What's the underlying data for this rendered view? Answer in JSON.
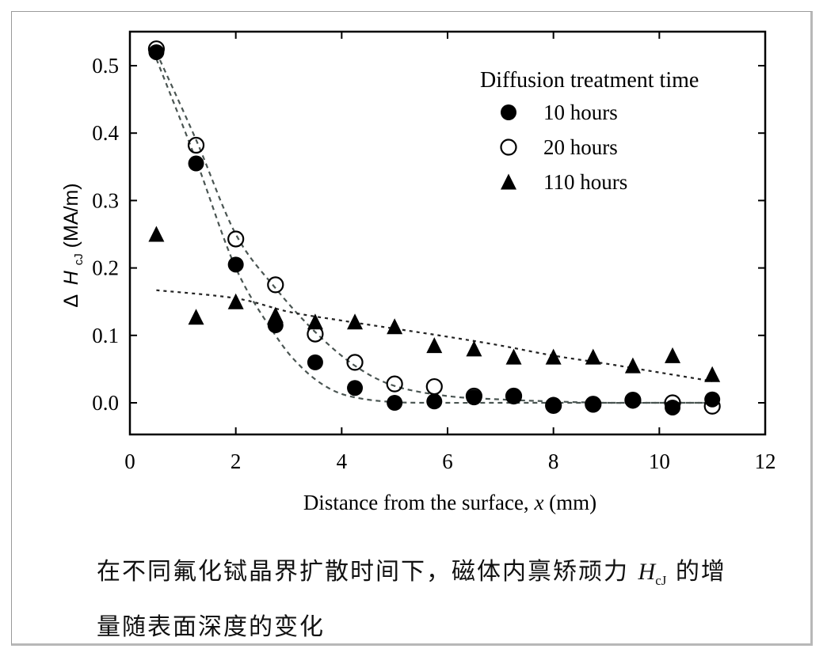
{
  "chart_data": {
    "type": "scatter",
    "xlabel_main": "Distance from the surface, ",
    "xlabel_var": "x",
    "xlabel_unit": " (mm)",
    "ylabel_delta": "Δ",
    "ylabel_var": "H",
    "ylabel_sub": "cJ",
    "ylabel_unit": "(MA/m)",
    "xlim": [
      0,
      12
    ],
    "ylim": [
      -0.05,
      0.55
    ],
    "xticks": [
      "0",
      "2",
      "4",
      "6",
      "8",
      "10",
      "12"
    ],
    "yticks": [
      "0.0",
      "0.1",
      "0.2",
      "0.3",
      "0.4",
      "0.5"
    ],
    "grid": false,
    "legend_title": "Diffusion treatment time",
    "legend_position": "top-right",
    "series": [
      {
        "name": "10 hours",
        "marker": "filled-circle",
        "x": [
          0.5,
          1.25,
          2.0,
          2.75,
          3.5,
          4.25,
          5.0,
          5.75,
          6.5,
          7.25,
          8.0,
          8.75,
          9.5,
          10.25,
          11.0
        ],
        "y": [
          0.52,
          0.355,
          0.205,
          0.115,
          0.06,
          0.022,
          0.0,
          0.002,
          0.008,
          0.01,
          -0.003,
          -0.003,
          0.003,
          -0.007,
          0.005
        ]
      },
      {
        "name": "20 hours",
        "marker": "open-circle",
        "x": [
          0.5,
          1.25,
          2.0,
          2.75,
          3.5,
          4.25,
          5.0,
          5.75,
          6.5,
          7.25,
          8.0,
          8.75,
          9.5,
          10.25,
          11.0
        ],
        "y": [
          0.525,
          0.382,
          0.243,
          0.175,
          0.102,
          0.06,
          0.028,
          0.024,
          0.01,
          0.01,
          -0.004,
          -0.002,
          0.004,
          0.0,
          -0.005
        ]
      },
      {
        "name": "110 hours",
        "marker": "filled-triangle",
        "x": [
          0.5,
          1.25,
          2.0,
          2.75,
          3.5,
          4.25,
          5.0,
          5.75,
          6.5,
          7.25,
          8.0,
          8.75,
          9.5,
          10.25,
          11.0
        ],
        "y": [
          0.25,
          0.127,
          0.15,
          0.13,
          0.12,
          0.12,
          0.113,
          0.085,
          0.08,
          0.068,
          0.068,
          0.068,
          0.055,
          0.07,
          0.042
        ]
      }
    ],
    "fit_lines": [
      {
        "style": "dashed",
        "x": [
          0.5,
          1.25,
          2.0,
          2.75,
          3.5,
          4.25,
          5.0,
          6.0,
          7.0,
          8.0,
          9.0,
          10.0,
          11.0
        ],
        "y": [
          0.52,
          0.39,
          0.25,
          0.17,
          0.105,
          0.055,
          0.025,
          0.01,
          0.005,
          0.002,
          0.0,
          0.0,
          0.0
        ]
      },
      {
        "style": "dashed",
        "x": [
          0.5,
          1.25,
          2.0,
          2.75,
          3.25,
          3.75,
          4.25,
          5.0,
          6.0,
          7.0,
          8.0,
          9.0,
          10.0,
          11.0
        ],
        "y": [
          0.51,
          0.36,
          0.2,
          0.1,
          0.052,
          0.022,
          0.008,
          0.001,
          0.0,
          0.0,
          0.0,
          0.0,
          0.0,
          0.0
        ]
      },
      {
        "style": "dotted",
        "x": [
          0.5,
          2.0,
          3.0,
          4.0,
          5.0,
          6.0,
          7.0,
          8.0,
          9.0,
          10.0,
          11.0
        ],
        "y": [
          0.167,
          0.155,
          0.135,
          0.122,
          0.11,
          0.098,
          0.085,
          0.07,
          0.058,
          0.045,
          0.032
        ]
      }
    ]
  },
  "caption": {
    "line1_prefix": "在不同氟化铽晶界扩散时间下，磁体内禀矫顽力 ",
    "symbol": "H",
    "symbol_sub": "cJ",
    "line1_suffix": " 的增",
    "line2": "量随表面深度的变化"
  }
}
